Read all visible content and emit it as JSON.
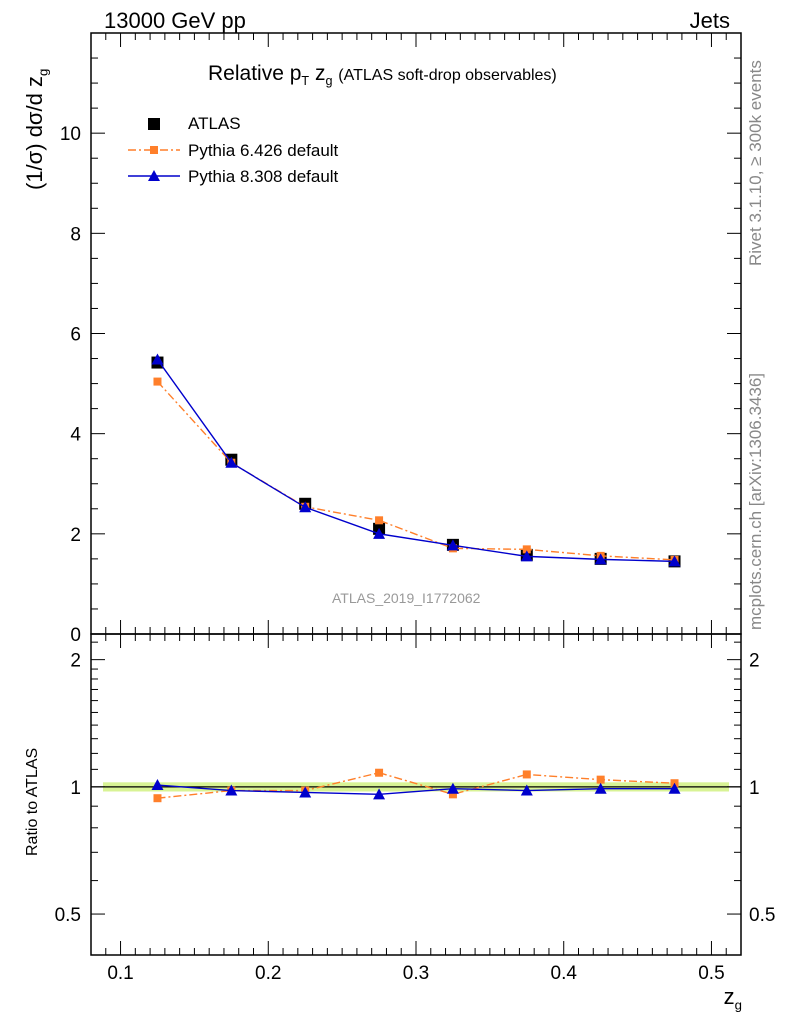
{
  "header": {
    "left": "13000 GeV pp",
    "right": "Jets"
  },
  "side_labels": {
    "rivet": "Rivet 3.1.10, ≥ 300k events",
    "source": "mcplots.cern.ch [arXiv:1306.3436]"
  },
  "watermark": "ATLAS_2019_I1772062",
  "chart_data": {
    "type": "line",
    "title_main": "Relative p",
    "title_sub_T": "T",
    "title_zg": "z",
    "title_zg_sub": "g",
    "title_rest": "(ATLAS soft-drop observables)",
    "ylabel_main": "(1/σ) dσ/d z",
    "ylabel_main_sub": "g",
    "ylabel_ratio": "Ratio to ATLAS",
    "xlabel": "z",
    "xlabel_sub": "g",
    "xlim": [
      0.08,
      0.52
    ],
    "ylim_main": [
      0,
      12
    ],
    "ylim_ratio": [
      0.4,
      2.3
    ],
    "x_ticks": [
      "0.1",
      "0.2",
      "0.3",
      "0.4",
      "0.5"
    ],
    "y_ticks_main": [
      "0",
      "2",
      "4",
      "6",
      "8",
      "10"
    ],
    "y_ticks_ratio": [
      "0.5",
      "1",
      "2"
    ],
    "x": [
      0.125,
      0.175,
      0.225,
      0.275,
      0.325,
      0.375,
      0.425,
      0.475
    ],
    "series": [
      {
        "name": "ATLAS",
        "color": "#000000",
        "marker": "square",
        "values": [
          5.42,
          3.48,
          2.6,
          2.1,
          1.78,
          1.58,
          1.5,
          1.45
        ],
        "ratio": [
          1.0,
          1.0,
          1.0,
          1.0,
          1.0,
          1.0,
          1.0,
          1.0
        ]
      },
      {
        "name": "Pythia 6.426 default",
        "color": "#ff7f2a",
        "marker": "square-small",
        "values": [
          5.04,
          3.42,
          2.54,
          2.27,
          1.71,
          1.69,
          1.56,
          1.48
        ],
        "ratio": [
          0.94,
          0.98,
          0.98,
          1.08,
          0.96,
          1.07,
          1.04,
          1.02
        ]
      },
      {
        "name": "Pythia 8.308 default",
        "color": "#0000cc",
        "marker": "triangle",
        "values": [
          5.48,
          3.42,
          2.53,
          2.0,
          1.77,
          1.55,
          1.49,
          1.45
        ],
        "ratio": [
          1.01,
          0.98,
          0.97,
          0.96,
          0.99,
          0.98,
          0.99,
          0.99
        ]
      }
    ]
  }
}
